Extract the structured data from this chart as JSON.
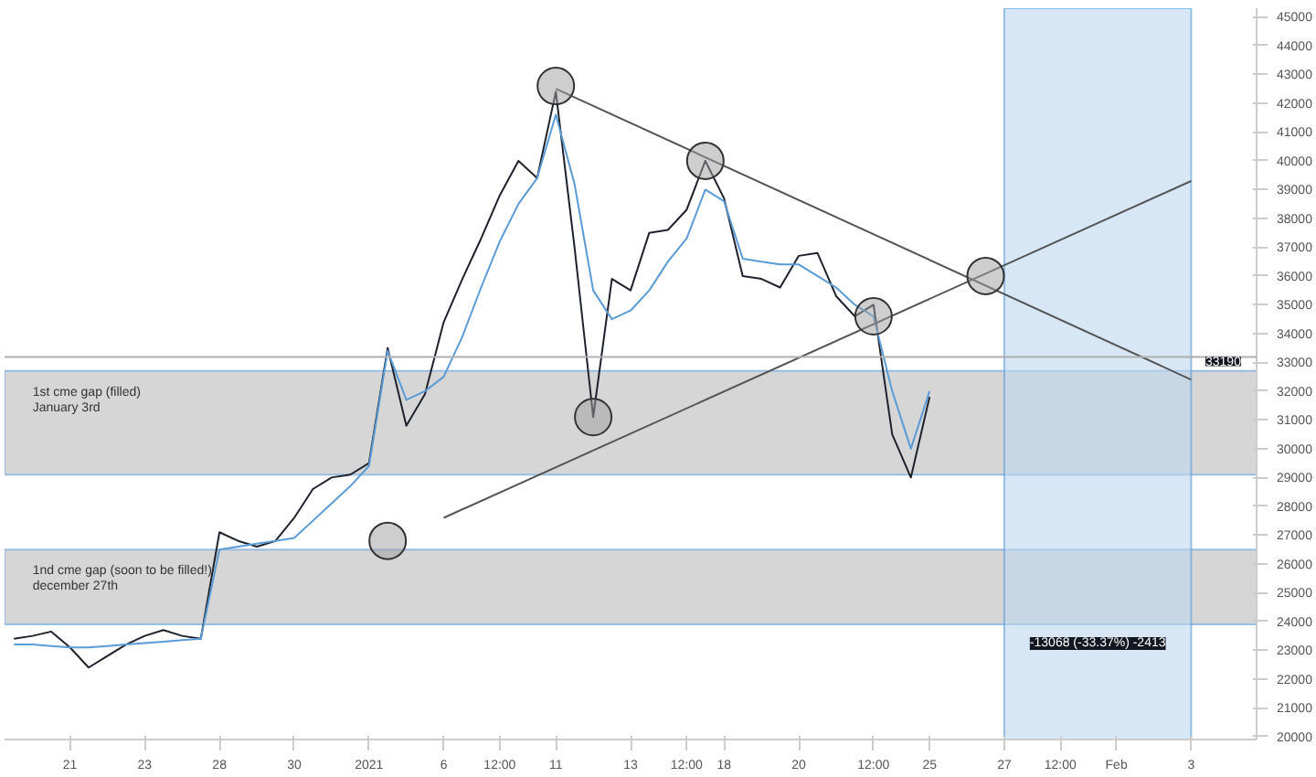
{
  "chart_data": {
    "type": "line",
    "categories": [
      null,
      null,
      null,
      "21",
      null,
      null,
      null,
      "23",
      null,
      null,
      null,
      "28",
      null,
      null,
      null,
      "30",
      null,
      null,
      null,
      "2021",
      null,
      null,
      null,
      "6",
      null,
      null,
      "12:00",
      null,
      null,
      "11",
      null,
      null,
      null,
      "13",
      null,
      null,
      "12:00",
      null,
      "18",
      null,
      null,
      null,
      "20",
      null,
      null,
      null,
      "12:00",
      null,
      null,
      "25",
      null,
      null,
      null,
      "27",
      null,
      null,
      "12:00",
      null,
      null,
      "Feb",
      null,
      null,
      null,
      "3",
      null,
      null,
      null
    ],
    "ylim": [
      19900,
      45300
    ],
    "yticks": [
      20000,
      21000,
      22000,
      23000,
      24000,
      25000,
      26000,
      27000,
      28000,
      29000,
      30000,
      31000,
      32000,
      33000,
      34000,
      35000,
      36000,
      37000,
      38000,
      39000,
      40000,
      41000,
      42000,
      43000,
      44000,
      45000
    ],
    "grid": false,
    "series": [
      {
        "color": "#1e222d",
        "values": [
          23400,
          23500,
          23650,
          23100,
          22400,
          22800,
          23200,
          23500,
          23700,
          23500,
          23400,
          27100,
          26800,
          26600,
          26800,
          27600,
          28600,
          29000,
          29100,
          29500,
          33500,
          30800,
          31900,
          34400,
          35900,
          37300,
          38800,
          40000,
          39400,
          42400,
          37000,
          31100,
          35900,
          35500,
          37500,
          37600,
          38300,
          40000,
          38700,
          36000,
          35900,
          35600,
          36700,
          36800,
          35300,
          34600,
          35000,
          30500,
          29000,
          31800,
          null,
          null,
          null,
          null,
          null,
          null,
          null,
          null,
          null,
          null,
          null,
          null,
          null,
          null,
          null,
          null,
          null
        ]
      },
      {
        "color": "#5b9bd5",
        "values": [
          23200,
          23200,
          23150,
          23100,
          23100,
          23150,
          23200,
          23250,
          23300,
          23350,
          23400,
          26500,
          26600,
          26700,
          26800,
          26900,
          27500,
          28100,
          28700,
          29400,
          33400,
          31700,
          32000,
          32500,
          33900,
          35600,
          37200,
          38500,
          39400,
          41600,
          39200,
          35500,
          34500,
          34800,
          35500,
          36500,
          37300,
          39000,
          38600,
          36600,
          36500,
          36400,
          36400,
          36000,
          35600,
          35000,
          34600,
          32000,
          30000,
          32000,
          null,
          null,
          null,
          null,
          null,
          null,
          null,
          null,
          null,
          null,
          null,
          null,
          null,
          null,
          null,
          null,
          null
        ]
      },
      {
        "type": "line",
        "color": "#555555",
        "x": [
          "11",
          "3"
        ],
        "values": [
          42500,
          32400
        ]
      },
      {
        "type": "line",
        "color": "#555555",
        "x": [
          "6",
          "3"
        ],
        "values": [
          27600,
          39300
        ]
      },
      {
        "type": "scatter",
        "marker": "circle",
        "color": "#9e9e9e",
        "values": [
          null,
          null,
          null,
          null,
          null,
          null,
          null,
          null,
          null,
          null,
          null,
          null,
          null,
          null,
          null,
          null,
          null,
          null,
          null,
          null,
          26800,
          null,
          null,
          null,
          null,
          null,
          null,
          null,
          null,
          42600,
          null,
          31100,
          null,
          null,
          null,
          null,
          null,
          40000,
          null,
          null,
          null,
          null,
          null,
          null,
          null,
          null,
          34600,
          null,
          null,
          null,
          null,
          null,
          36000,
          null,
          null,
          null,
          null,
          null,
          null,
          null,
          null,
          null,
          null,
          null,
          null,
          null,
          null
        ]
      }
    ],
    "bands": [
      {
        "axis": "y",
        "from": 29100,
        "to": 32700,
        "label": "1st cme gap (filled)\nJanuary 3rd",
        "color": "#c8c8c8"
      },
      {
        "axis": "y",
        "from": 23900,
        "to": 26500,
        "label": "1nd cme gap (soon to be filled!)\ndecember 27th",
        "color": "#c8c8c8"
      },
      {
        "axis": "x",
        "from": "27",
        "to": "3",
        "color": "#bcd7ee"
      }
    ],
    "ref_lines": [
      {
        "axis": "y",
        "value": 33190,
        "label": "33190",
        "color": "#b0b0b0"
      }
    ],
    "annotations": [
      {
        "text": "-13068 (-33.37%) -2413",
        "y": 23900
      }
    ]
  }
}
